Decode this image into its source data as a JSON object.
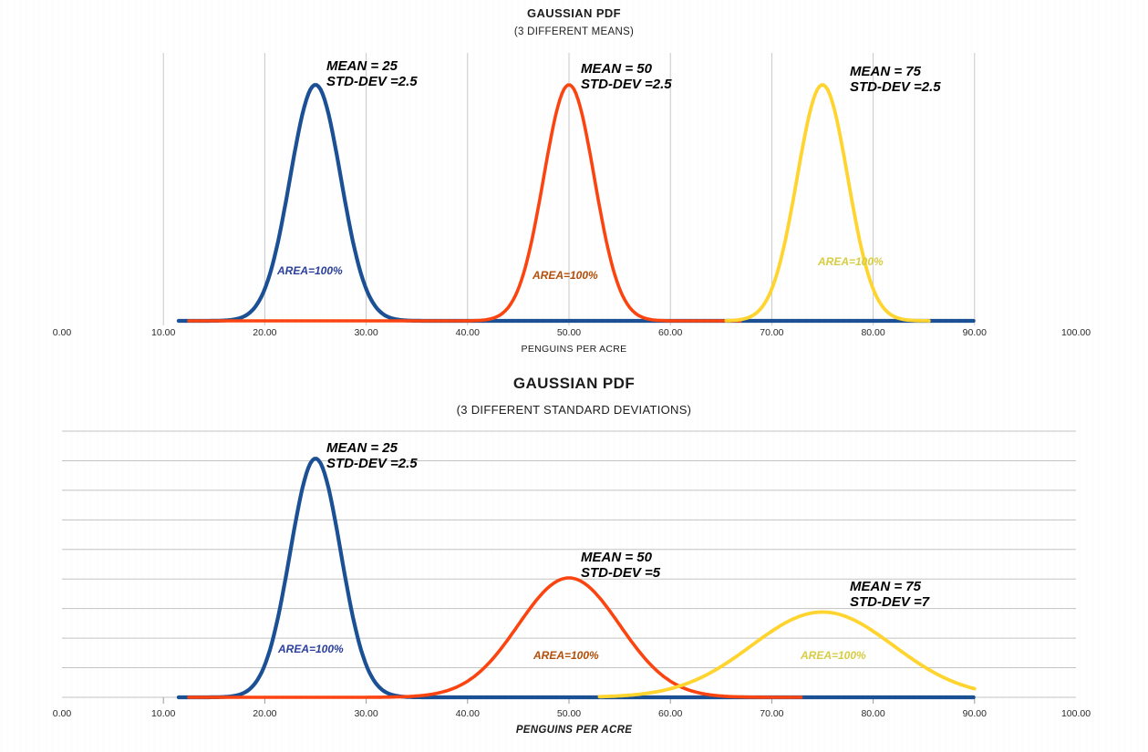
{
  "chart_data": [
    {
      "type": "line",
      "title": "GAUSSIAN PDF",
      "subtitle": "(3 DIFFERENT MEANS)",
      "xlabel": "PENGUINS PER ACRE",
      "xlim": [
        0,
        100
      ],
      "x_tick_labels": [
        "0.00",
        "10.00",
        "20.00",
        "30.00",
        "40.00",
        "50.00",
        "60.00",
        "70.00",
        "80.00",
        "90.00",
        "100.00"
      ],
      "grid": "vertical-gridlines",
      "gridline_color": "#C9C9C9",
      "legend": "none",
      "series": [
        {
          "name": "gaussian-mean-25-std-2.5",
          "distribution": "gaussian",
          "mean": 25,
          "std": 2.5,
          "area": "100%",
          "color": "#1B5094",
          "annotation": [
            "MEAN = 25",
            "STD-DEV =2.5"
          ],
          "area_label": "AREA=100%",
          "area_label_color": "#2A3F9B",
          "draw_range": [
            11.5,
            90
          ]
        },
        {
          "name": "gaussian-mean-50-std-2.5",
          "distribution": "gaussian",
          "mean": 50,
          "std": 2.5,
          "area": "100%",
          "color": "#FB4410",
          "annotation": [
            "MEAN = 50",
            "STD-DEV =2.5"
          ],
          "area_label": "AREA=100%",
          "area_label_color": "#B34E09",
          "draw_range": [
            12.5,
            67
          ]
        },
        {
          "name": "gaussian-mean-75-std-2.5",
          "distribution": "gaussian",
          "mean": 75,
          "std": 2.5,
          "area": "100%",
          "color": "#FFD42E",
          "annotation": [
            "MEAN = 75",
            "STD-DEV =2.5"
          ],
          "area_label": "AREA=100%",
          "area_label_color": "#D8CC42",
          "draw_range": [
            65.5,
            85.5
          ]
        }
      ]
    },
    {
      "type": "line",
      "title": "GAUSSIAN PDF",
      "subtitle": "(3 DIFFERENT STANDARD DEVIATIONS)",
      "xlabel": "PENGUINS PER ACRE",
      "xlim": [
        0,
        100
      ],
      "x_tick_labels": [
        "0.00",
        "10.00",
        "20.00",
        "30.00",
        "40.00",
        "50.00",
        "60.00",
        "70.00",
        "80.00",
        "90.00",
        "100.00"
      ],
      "grid": "horizontal-gridlines",
      "gridline_color": "#C3C3C3",
      "legend": "none",
      "series": [
        {
          "name": "gaussian-mean-25-std-2.5",
          "distribution": "gaussian",
          "mean": 25,
          "std": 2.5,
          "area": "100%",
          "color": "#1B5094",
          "annotation": [
            "MEAN = 25",
            "STD-DEV =2.5"
          ],
          "area_label": "AREA=100%",
          "area_label_color": "#2A3F9B",
          "draw_range": [
            11.5,
            90
          ]
        },
        {
          "name": "gaussian-mean-50-std-5",
          "distribution": "gaussian",
          "mean": 50,
          "std": 5,
          "area": "100%",
          "color": "#FB4410",
          "annotation": [
            "MEAN = 50",
            "STD-DEV =5"
          ],
          "area_label": "AREA=100%",
          "area_label_color": "#B34E09",
          "draw_range": [
            12.5,
            73
          ]
        },
        {
          "name": "gaussian-mean-75-std-7",
          "distribution": "gaussian",
          "mean": 75,
          "std": 7,
          "area": "100%",
          "color": "#FFD42E",
          "annotation": [
            "MEAN = 75",
            "STD-DEV =7"
          ],
          "area_label": "AREA=100%",
          "area_label_color": "#D8CC42",
          "draw_range": [
            53,
            90
          ]
        }
      ]
    }
  ]
}
